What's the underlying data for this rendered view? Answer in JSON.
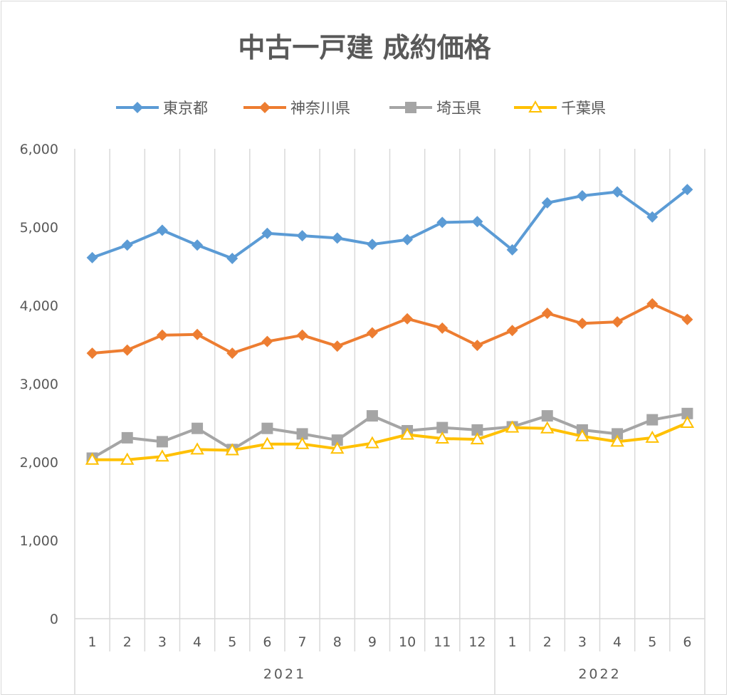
{
  "chart_data": {
    "type": "line",
    "title": "中古一戸建 成約価格",
    "legend_position": "top",
    "grid": "vertical category lines only",
    "ylim": [
      0,
      6000
    ],
    "yticks": [
      "0",
      "1,000",
      "2,000",
      "3,000",
      "4,000",
      "5,000",
      "6,000"
    ],
    "ytick_values": [
      0,
      1000,
      2000,
      3000,
      4000,
      5000,
      6000
    ],
    "categories": [
      "1",
      "2",
      "3",
      "4",
      "5",
      "6",
      "7",
      "8",
      "9",
      "10",
      "11",
      "12",
      "1",
      "2",
      "3",
      "4",
      "5",
      "6"
    ],
    "groups": [
      {
        "label": "2021",
        "count": 12
      },
      {
        "label": "2022",
        "count": 6
      }
    ],
    "series": [
      {
        "name": "東京都",
        "color": "#5b9bd5",
        "marker": "diamond",
        "values": [
          4610,
          4770,
          4960,
          4770,
          4600,
          4920,
          4890,
          4860,
          4780,
          4840,
          5060,
          5070,
          4710,
          5310,
          5400,
          5450,
          5130,
          5480
        ]
      },
      {
        "name": "神奈川県",
        "color": "#ed7d31",
        "marker": "diamond",
        "values": [
          3390,
          3430,
          3620,
          3630,
          3390,
          3540,
          3620,
          3480,
          3650,
          3830,
          3710,
          3490,
          3680,
          3900,
          3770,
          3790,
          4020,
          3820
        ]
      },
      {
        "name": "埼玉県",
        "color": "#a5a5a5",
        "marker": "square",
        "values": [
          2050,
          2310,
          2260,
          2430,
          2160,
          2430,
          2360,
          2280,
          2590,
          2400,
          2440,
          2410,
          2450,
          2590,
          2410,
          2360,
          2540,
          2620
        ]
      },
      {
        "name": "千葉県",
        "color": "#ffc000",
        "marker": "triangle-open",
        "values": [
          2030,
          2030,
          2070,
          2160,
          2150,
          2230,
          2230,
          2170,
          2240,
          2350,
          2300,
          2290,
          2440,
          2430,
          2330,
          2260,
          2310,
          2500
        ]
      }
    ]
  }
}
